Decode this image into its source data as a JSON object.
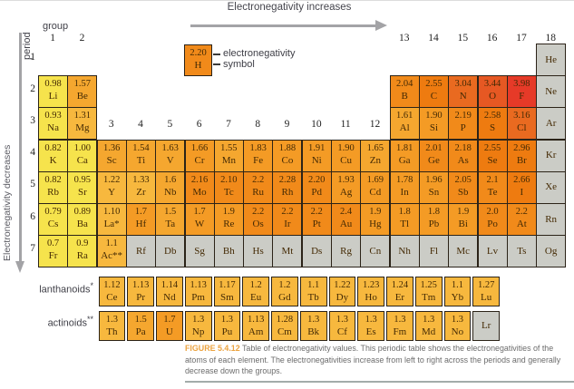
{
  "arrows": {
    "top_label": "Electronegativity increases",
    "left_label": "Electronegativity decreases"
  },
  "axis": {
    "group_label": "group",
    "period_label": "period",
    "group_numbers": [
      "1",
      "2",
      "3",
      "4",
      "5",
      "6",
      "7",
      "8",
      "9",
      "10",
      "11",
      "12",
      "13",
      "14",
      "15",
      "16",
      "17",
      "18"
    ],
    "period_numbers": [
      "1",
      "2",
      "3",
      "4",
      "5",
      "6",
      "7"
    ]
  },
  "legend": {
    "value": "2.20",
    "symbol": "H",
    "value_label": "electronegativity",
    "symbol_label": "symbol"
  },
  "table": {
    "periods": [
      {
        "period": 1,
        "cells": [
          {
            "g": 18,
            "sym": "He",
            "gray": true
          }
        ]
      },
      {
        "period": 2,
        "cells": [
          {
            "g": 1,
            "sym": "Li",
            "v": "0.98"
          },
          {
            "g": 2,
            "sym": "Be",
            "v": "1.57"
          },
          {
            "g": 13,
            "sym": "B",
            "v": "2.04"
          },
          {
            "g": 14,
            "sym": "C",
            "v": "2.55"
          },
          {
            "g": 15,
            "sym": "N",
            "v": "3.04"
          },
          {
            "g": 16,
            "sym": "O",
            "v": "3.44"
          },
          {
            "g": 17,
            "sym": "F",
            "v": "3.98"
          },
          {
            "g": 18,
            "sym": "Ne",
            "gray": true
          }
        ]
      },
      {
        "period": 3,
        "cells": [
          {
            "g": 1,
            "sym": "Na",
            "v": "0.93"
          },
          {
            "g": 2,
            "sym": "Mg",
            "v": "1.31"
          },
          {
            "g": 13,
            "sym": "Al",
            "v": "1.61"
          },
          {
            "g": 14,
            "sym": "Si",
            "v": "1.90"
          },
          {
            "g": 15,
            "sym": "P",
            "v": "2.19"
          },
          {
            "g": 16,
            "sym": "S",
            "v": "2.58"
          },
          {
            "g": 17,
            "sym": "Cl",
            "v": "3.16"
          },
          {
            "g": 18,
            "sym": "Ar",
            "gray": true
          }
        ]
      },
      {
        "period": 4,
        "cells": [
          {
            "g": 1,
            "sym": "K",
            "v": "0.82"
          },
          {
            "g": 2,
            "sym": "Ca",
            "v": "1.00"
          },
          {
            "g": 3,
            "sym": "Sc",
            "v": "1.36"
          },
          {
            "g": 4,
            "sym": "Ti",
            "v": "1.54"
          },
          {
            "g": 5,
            "sym": "V",
            "v": "1.63"
          },
          {
            "g": 6,
            "sym": "Cr",
            "v": "1.66"
          },
          {
            "g": 7,
            "sym": "Mn",
            "v": "1.55"
          },
          {
            "g": 8,
            "sym": "Fe",
            "v": "1.83"
          },
          {
            "g": 9,
            "sym": "Co",
            "v": "1.88"
          },
          {
            "g": 10,
            "sym": "Ni",
            "v": "1.91"
          },
          {
            "g": 11,
            "sym": "Cu",
            "v": "1.90"
          },
          {
            "g": 12,
            "sym": "Zn",
            "v": "1.65"
          },
          {
            "g": 13,
            "sym": "Ga",
            "v": "1.81"
          },
          {
            "g": 14,
            "sym": "Ge",
            "v": "2.01"
          },
          {
            "g": 15,
            "sym": "As",
            "v": "2.18"
          },
          {
            "g": 16,
            "sym": "Se",
            "v": "2.55"
          },
          {
            "g": 17,
            "sym": "Br",
            "v": "2.96"
          },
          {
            "g": 18,
            "sym": "Kr",
            "gray": true
          }
        ]
      },
      {
        "period": 5,
        "cells": [
          {
            "g": 1,
            "sym": "Rb",
            "v": "0.82"
          },
          {
            "g": 2,
            "sym": "Sr",
            "v": "0.95"
          },
          {
            "g": 3,
            "sym": "Y",
            "v": "1.22"
          },
          {
            "g": 4,
            "sym": "Zr",
            "v": "1.33"
          },
          {
            "g": 5,
            "sym": "Nb",
            "v": "1.6"
          },
          {
            "g": 6,
            "sym": "Mo",
            "v": "2.16"
          },
          {
            "g": 7,
            "sym": "Tc",
            "v": "2.10"
          },
          {
            "g": 8,
            "sym": "Ru",
            "v": "2.2"
          },
          {
            "g": 9,
            "sym": "Rh",
            "v": "2.28"
          },
          {
            "g": 10,
            "sym": "Pd",
            "v": "2.20"
          },
          {
            "g": 11,
            "sym": "Ag",
            "v": "1.93"
          },
          {
            "g": 12,
            "sym": "Cd",
            "v": "1.69"
          },
          {
            "g": 13,
            "sym": "In",
            "v": "1.78"
          },
          {
            "g": 14,
            "sym": "Sn",
            "v": "1.96"
          },
          {
            "g": 15,
            "sym": "Sb",
            "v": "2.05"
          },
          {
            "g": 16,
            "sym": "Te",
            "v": "2.1"
          },
          {
            "g": 17,
            "sym": "I",
            "v": "2.66"
          },
          {
            "g": 18,
            "sym": "Xe",
            "gray": true
          }
        ]
      },
      {
        "period": 6,
        "cells": [
          {
            "g": 1,
            "sym": "Cs",
            "v": "0.79"
          },
          {
            "g": 2,
            "sym": "Ba",
            "v": "0.89"
          },
          {
            "g": 3,
            "sym": "La*",
            "v": "1.10"
          },
          {
            "g": 4,
            "sym": "Hf",
            "v": "1.7"
          },
          {
            "g": 5,
            "sym": "Ta",
            "v": "1.5"
          },
          {
            "g": 6,
            "sym": "W",
            "v": "1.7"
          },
          {
            "g": 7,
            "sym": "Re",
            "v": "1.9"
          },
          {
            "g": 8,
            "sym": "Os",
            "v": "2.2"
          },
          {
            "g": 9,
            "sym": "Ir",
            "v": "2.2"
          },
          {
            "g": 10,
            "sym": "Pt",
            "v": "2.2"
          },
          {
            "g": 11,
            "sym": "Au",
            "v": "2.4"
          },
          {
            "g": 12,
            "sym": "Hg",
            "v": "1.9"
          },
          {
            "g": 13,
            "sym": "Tl",
            "v": "1.8"
          },
          {
            "g": 14,
            "sym": "Pb",
            "v": "1.8"
          },
          {
            "g": 15,
            "sym": "Bi",
            "v": "1.9"
          },
          {
            "g": 16,
            "sym": "Po",
            "v": "2.0"
          },
          {
            "g": 17,
            "sym": "At",
            "v": "2.2"
          },
          {
            "g": 18,
            "sym": "Rn",
            "gray": true
          }
        ]
      },
      {
        "period": 7,
        "cells": [
          {
            "g": 1,
            "sym": "Fr",
            "v": "0.7"
          },
          {
            "g": 2,
            "sym": "Ra",
            "v": "0.9"
          },
          {
            "g": 3,
            "sym": "Ac**",
            "v": "1.1"
          },
          {
            "g": 4,
            "sym": "Rf",
            "gray": true
          },
          {
            "g": 5,
            "sym": "Db",
            "gray": true
          },
          {
            "g": 6,
            "sym": "Sg",
            "gray": true
          },
          {
            "g": 7,
            "sym": "Bh",
            "gray": true
          },
          {
            "g": 8,
            "sym": "Hs",
            "gray": true
          },
          {
            "g": 9,
            "sym": "Mt",
            "gray": true
          },
          {
            "g": 10,
            "sym": "Ds",
            "gray": true
          },
          {
            "g": 11,
            "sym": "Rg",
            "gray": true
          },
          {
            "g": 12,
            "sym": "Cn",
            "gray": true
          },
          {
            "g": 13,
            "sym": "Nh",
            "gray": true
          },
          {
            "g": 14,
            "sym": "Fl",
            "gray": true
          },
          {
            "g": 15,
            "sym": "Mc",
            "gray": true
          },
          {
            "g": 16,
            "sym": "Lv",
            "gray": true
          },
          {
            "g": 17,
            "sym": "Ts",
            "gray": true
          },
          {
            "g": 18,
            "sym": "Og",
            "gray": true
          }
        ]
      }
    ]
  },
  "lanthanoids": {
    "label": "lanthanoids",
    "marker": "*",
    "cells": [
      {
        "sym": "Ce",
        "v": "1.12"
      },
      {
        "sym": "Pr",
        "v": "1.13"
      },
      {
        "sym": "Nd",
        "v": "1.14"
      },
      {
        "sym": "Pm",
        "v": "1.13"
      },
      {
        "sym": "Sm",
        "v": "1.17"
      },
      {
        "sym": "Eu",
        "v": "1.2"
      },
      {
        "sym": "Gd",
        "v": "1.2"
      },
      {
        "sym": "Tb",
        "v": "1.1"
      },
      {
        "sym": "Dy",
        "v": "1.22"
      },
      {
        "sym": "Ho",
        "v": "1.23"
      },
      {
        "sym": "Er",
        "v": "1.24"
      },
      {
        "sym": "Tm",
        "v": "1.25"
      },
      {
        "sym": "Yb",
        "v": "1.1"
      },
      {
        "sym": "Lu",
        "v": "1.27"
      }
    ]
  },
  "actinoids": {
    "label": "actinoids",
    "marker": "**",
    "cells": [
      {
        "sym": "Th",
        "v": "1.3"
      },
      {
        "sym": "Pa",
        "v": "1.5"
      },
      {
        "sym": "U",
        "v": "1.7"
      },
      {
        "sym": "Np",
        "v": "1.3"
      },
      {
        "sym": "Pu",
        "v": "1.3"
      },
      {
        "sym": "Am",
        "v": "1.13"
      },
      {
        "sym": "Cm",
        "v": "1.28"
      },
      {
        "sym": "Bk",
        "v": "1.3"
      },
      {
        "sym": "Cf",
        "v": "1.3"
      },
      {
        "sym": "Es",
        "v": "1.3"
      },
      {
        "sym": "Fm",
        "v": "1.3"
      },
      {
        "sym": "Md",
        "v": "1.3"
      },
      {
        "sym": "No",
        "v": "1.3"
      },
      {
        "sym": "Lr",
        "gray": true
      }
    ]
  },
  "caption": {
    "figure_label": "FIGURE 5.4.12",
    "text": "Table of electronegativity values. This periodic table shows the electronegativities of the atoms of each element. The electronegativities increase from left to right across the periods and generally decrease down the groups."
  },
  "colors": {
    "gray_cell": "#cbccc6",
    "cell_border": "#2b2318",
    "cell_text": "#442a04",
    "arrow": "#a3a3a6",
    "figure_label_color": "#eca33f",
    "caption_text_color": "#6c6c6c",
    "scale": [
      {
        "max": 1.05,
        "color": "#f6e34c"
      },
      {
        "max": 1.35,
        "color": "#f7b83e"
      },
      {
        "max": 1.65,
        "color": "#f5a72f"
      },
      {
        "max": 1.99,
        "color": "#f49b25"
      },
      {
        "max": 2.49,
        "color": "#f18a1a"
      },
      {
        "max": 2.99,
        "color": "#ee7b10"
      },
      {
        "max": 3.29,
        "color": "#e96a20"
      },
      {
        "max": 3.59,
        "color": "#e65823"
      },
      {
        "max": 9.99,
        "color": "#e63a28"
      }
    ]
  }
}
